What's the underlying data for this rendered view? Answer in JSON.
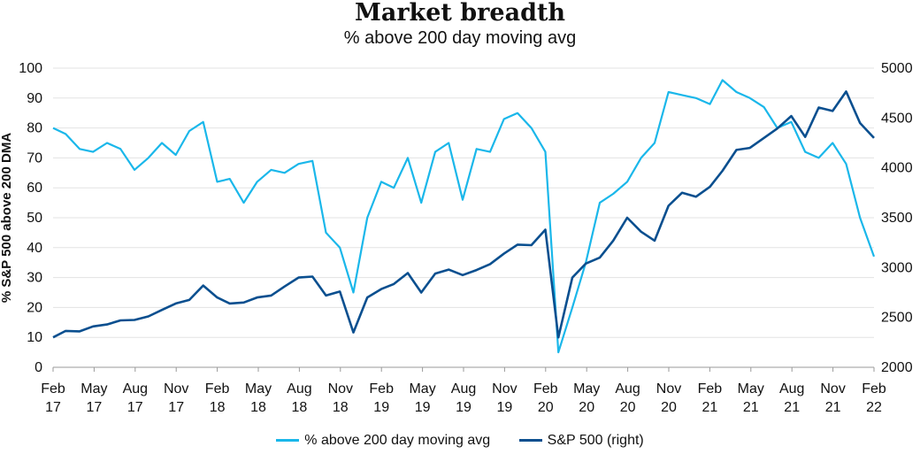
{
  "chart_data": {
    "type": "line",
    "title": "Market breadth",
    "subtitle": "% above 200 day moving avg",
    "ylabel_left": "% S&P 500 above 200 DMA",
    "ylabel_right": "",
    "xlabel": "",
    "ylim_left": [
      0,
      100
    ],
    "ylim_right": [
      2000,
      5000
    ],
    "yticks_left": [
      "0",
      "10",
      "20",
      "30",
      "40",
      "50",
      "60",
      "70",
      "80",
      "90",
      "100"
    ],
    "yticks_right": [
      "2000",
      "2500",
      "3000",
      "3500",
      "4000",
      "4500",
      "5000"
    ],
    "x_ticks": [
      {
        "month": "Feb",
        "year": "17"
      },
      {
        "month": "May",
        "year": "17"
      },
      {
        "month": "Aug",
        "year": "17"
      },
      {
        "month": "Nov",
        "year": "17"
      },
      {
        "month": "Feb",
        "year": "18"
      },
      {
        "month": "May",
        "year": "18"
      },
      {
        "month": "Aug",
        "year": "18"
      },
      {
        "month": "Nov",
        "year": "18"
      },
      {
        "month": "Feb",
        "year": "19"
      },
      {
        "month": "May",
        "year": "19"
      },
      {
        "month": "Aug",
        "year": "19"
      },
      {
        "month": "Nov",
        "year": "19"
      },
      {
        "month": "Feb",
        "year": "20"
      },
      {
        "month": "May",
        "year": "20"
      },
      {
        "month": "Aug",
        "year": "20"
      },
      {
        "month": "Nov",
        "year": "20"
      },
      {
        "month": "Feb",
        "year": "21"
      },
      {
        "month": "May",
        "year": "21"
      },
      {
        "month": "Aug",
        "year": "21"
      },
      {
        "month": "Nov",
        "year": "21"
      },
      {
        "month": "Feb",
        "year": "22"
      }
    ],
    "grid": "horizontal",
    "legend_position": "bottom-center",
    "series": [
      {
        "name": "% above 200 day moving avg",
        "axis": "left",
        "color": "#1ab7ea",
        "points": [
          [
            "2017-02",
            80
          ],
          [
            "2017-03",
            78
          ],
          [
            "2017-04",
            73
          ],
          [
            "2017-05",
            72
          ],
          [
            "2017-06",
            75
          ],
          [
            "2017-07",
            73
          ],
          [
            "2017-08",
            66
          ],
          [
            "2017-09",
            70
          ],
          [
            "2017-10",
            75
          ],
          [
            "2017-11",
            71
          ],
          [
            "2017-12",
            79
          ],
          [
            "2018-01",
            82
          ],
          [
            "2018-02",
            62
          ],
          [
            "2018-03",
            63
          ],
          [
            "2018-04",
            55
          ],
          [
            "2018-05",
            62
          ],
          [
            "2018-06",
            66
          ],
          [
            "2018-07",
            65
          ],
          [
            "2018-08",
            68
          ],
          [
            "2018-09",
            69
          ],
          [
            "2018-10",
            45
          ],
          [
            "2018-11",
            40
          ],
          [
            "2018-12",
            25
          ],
          [
            "2019-01",
            50
          ],
          [
            "2019-02",
            62
          ],
          [
            "2019-03",
            60
          ],
          [
            "2019-04",
            70
          ],
          [
            "2019-05",
            55
          ],
          [
            "2019-06",
            72
          ],
          [
            "2019-07",
            75
          ],
          [
            "2019-08",
            56
          ],
          [
            "2019-09",
            73
          ],
          [
            "2019-10",
            72
          ],
          [
            "2019-11",
            83
          ],
          [
            "2019-12",
            85
          ],
          [
            "2020-01",
            80
          ],
          [
            "2020-02",
            72
          ],
          [
            "2020-03",
            5
          ],
          [
            "2020-04",
            20
          ],
          [
            "2020-05",
            35
          ],
          [
            "2020-06",
            55
          ],
          [
            "2020-07",
            58
          ],
          [
            "2020-08",
            62
          ],
          [
            "2020-09",
            70
          ],
          [
            "2020-10",
            75
          ],
          [
            "2020-11",
            92
          ],
          [
            "2020-12",
            91
          ],
          [
            "2021-01",
            90
          ],
          [
            "2021-02",
            88
          ],
          [
            "2021-03",
            96
          ],
          [
            "2021-04",
            92
          ],
          [
            "2021-05",
            90
          ],
          [
            "2021-06",
            87
          ],
          [
            "2021-07",
            80
          ],
          [
            "2021-08",
            82
          ],
          [
            "2021-09",
            72
          ],
          [
            "2021-10",
            70
          ],
          [
            "2021-11",
            75
          ],
          [
            "2021-12",
            68
          ],
          [
            "2022-01",
            50
          ],
          [
            "2022-02",
            37
          ]
        ]
      },
      {
        "name": "S&P 500 (right)",
        "axis": "right",
        "color": "#0a4f8f",
        "points": [
          [
            "2017-02",
            2300
          ],
          [
            "2017-03",
            2365
          ],
          [
            "2017-04",
            2360
          ],
          [
            "2017-05",
            2410
          ],
          [
            "2017-06",
            2430
          ],
          [
            "2017-07",
            2470
          ],
          [
            "2017-08",
            2475
          ],
          [
            "2017-09",
            2510
          ],
          [
            "2017-10",
            2575
          ],
          [
            "2017-11",
            2640
          ],
          [
            "2017-12",
            2675
          ],
          [
            "2018-01",
            2820
          ],
          [
            "2018-02",
            2700
          ],
          [
            "2018-03",
            2640
          ],
          [
            "2018-04",
            2650
          ],
          [
            "2018-05",
            2700
          ],
          [
            "2018-06",
            2720
          ],
          [
            "2018-07",
            2810
          ],
          [
            "2018-08",
            2900
          ],
          [
            "2018-09",
            2910
          ],
          [
            "2018-10",
            2720
          ],
          [
            "2018-11",
            2760
          ],
          [
            "2018-12",
            2350
          ],
          [
            "2019-01",
            2700
          ],
          [
            "2019-02",
            2785
          ],
          [
            "2019-03",
            2835
          ],
          [
            "2019-04",
            2945
          ],
          [
            "2019-05",
            2750
          ],
          [
            "2019-06",
            2940
          ],
          [
            "2019-07",
            2980
          ],
          [
            "2019-08",
            2925
          ],
          [
            "2019-09",
            2975
          ],
          [
            "2019-10",
            3035
          ],
          [
            "2019-11",
            3140
          ],
          [
            "2019-12",
            3230
          ],
          [
            "2020-01",
            3225
          ],
          [
            "2020-02",
            3380
          ],
          [
            "2020-03",
            2300
          ],
          [
            "2020-04",
            2900
          ],
          [
            "2020-05",
            3040
          ],
          [
            "2020-06",
            3100
          ],
          [
            "2020-07",
            3270
          ],
          [
            "2020-08",
            3500
          ],
          [
            "2020-09",
            3360
          ],
          [
            "2020-10",
            3270
          ],
          [
            "2020-11",
            3620
          ],
          [
            "2020-12",
            3750
          ],
          [
            "2021-01",
            3710
          ],
          [
            "2021-02",
            3810
          ],
          [
            "2021-03",
            3970
          ],
          [
            "2021-04",
            4180
          ],
          [
            "2021-05",
            4200
          ],
          [
            "2021-06",
            4300
          ],
          [
            "2021-07",
            4395
          ],
          [
            "2021-08",
            4520
          ],
          [
            "2021-09",
            4310
          ],
          [
            "2021-10",
            4605
          ],
          [
            "2021-11",
            4570
          ],
          [
            "2021-12",
            4766
          ],
          [
            "2022-01",
            4450
          ],
          [
            "2022-02",
            4300
          ]
        ]
      }
    ]
  }
}
